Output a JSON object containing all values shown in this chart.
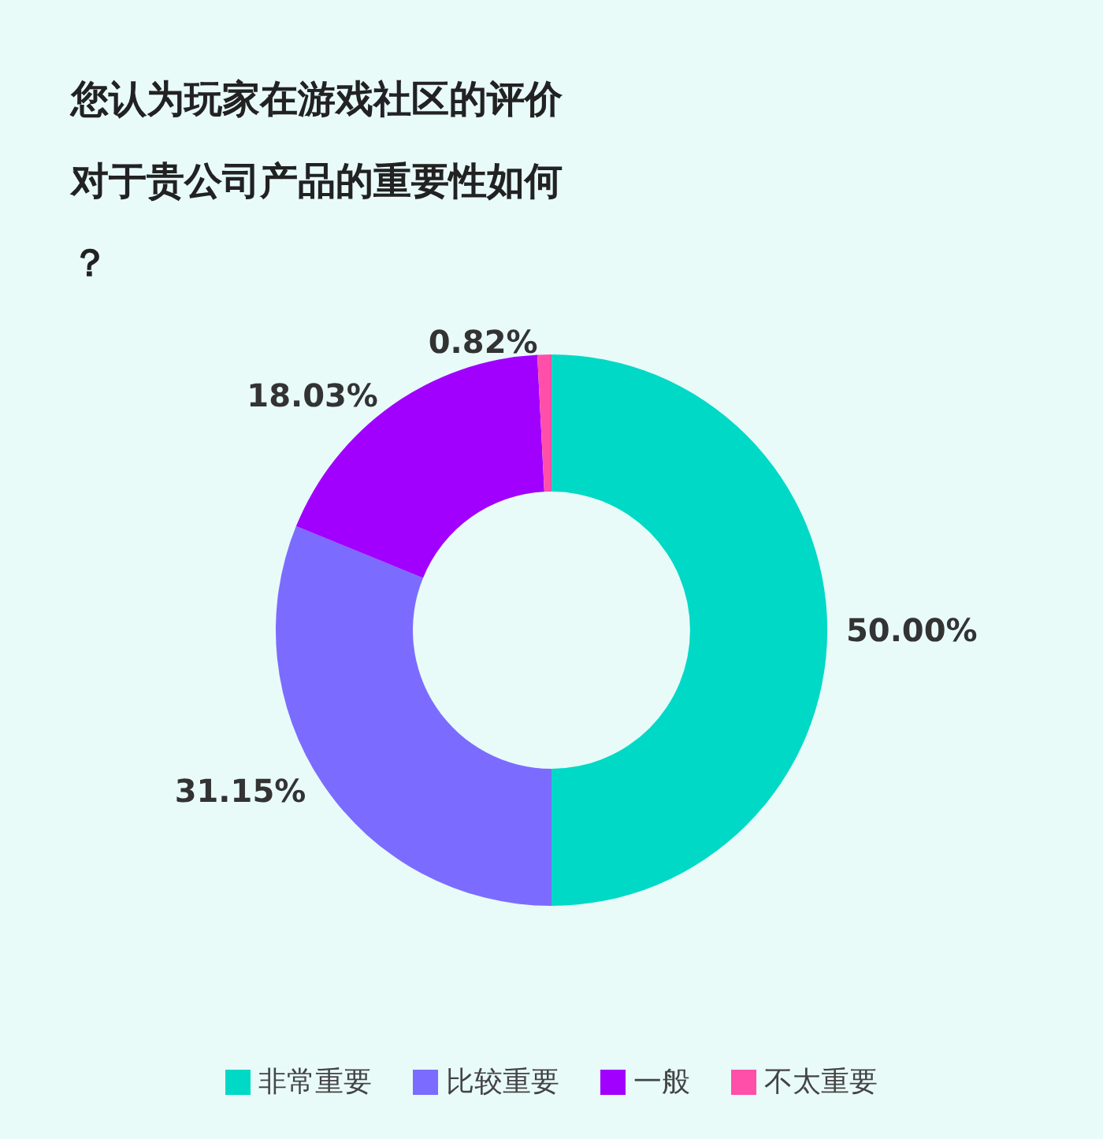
{
  "chart_data": {
    "type": "donut",
    "title": "您认为玩家在游戏社区的评价对于贵公司产品的重要性如何？",
    "categories": [
      "非常重要",
      "比较重要",
      "一般",
      "不太重要"
    ],
    "values": [
      50,
      31.15,
      18.03,
      0.82
    ],
    "colors": [
      "#00d9c6",
      "#7b6cff",
      "#a100ff",
      "#ff4fa8"
    ],
    "value_labels": [
      "50.00%",
      "31.15%",
      "18.03%",
      "0.82%"
    ],
    "legend": "bottom"
  }
}
